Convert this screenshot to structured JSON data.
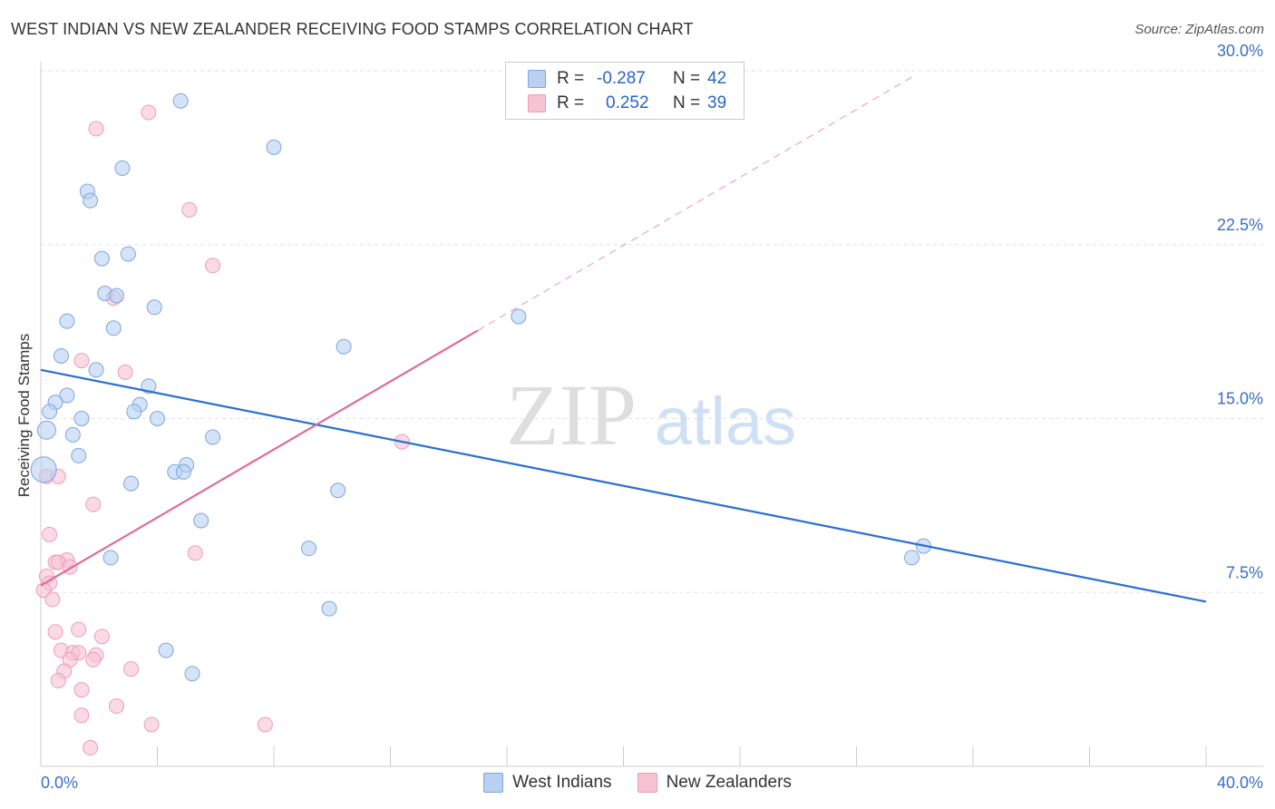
{
  "header": {
    "title": "WEST INDIAN VS NEW ZEALANDER RECEIVING FOOD STAMPS CORRELATION CHART",
    "source": "Source: ZipAtlas.com"
  },
  "colors": {
    "blue_fill": "#b8d0f1",
    "blue_stroke": "#7ea6dc",
    "blue_line": "#2a6fd0",
    "pink_fill": "#f7c3d3",
    "pink_stroke": "#ee9cb6",
    "pink_line": "#e06a95",
    "tick_text": "#3a6fc4",
    "grid": "#e2e2e2"
  },
  "legend": {
    "series1": {
      "r_label": "R =",
      "r_value": "-0.287",
      "n_label": "N =",
      "n_value": "42"
    },
    "series2": {
      "r_label": "R =",
      "r_value": "0.252",
      "n_label": "N =",
      "n_value": "39"
    }
  },
  "bottom_legend": [
    "West Indians",
    "New Zealanders"
  ],
  "watermark": {
    "zip": "ZIP",
    "atlas": "atlas"
  },
  "chart_data": {
    "type": "scatter",
    "title": "WEST INDIAN VS NEW ZEALANDER RECEIVING FOOD STAMPS CORRELATION CHART",
    "xlabel": "",
    "ylabel": "Receiving Food Stamps",
    "xlim": [
      0,
      40
    ],
    "ylim": [
      0,
      30
    ],
    "x_tick_labels": [
      "0.0%",
      "40.0%"
    ],
    "y_ticks": [
      7.5,
      15.0,
      22.5,
      30.0
    ],
    "y_tick_labels": [
      "7.5%",
      "15.0%",
      "22.5%",
      "30.0%"
    ],
    "grid": true,
    "legend_position": "top-center",
    "series": [
      {
        "name": "West Indians",
        "points": [
          [
            4.8,
            28.7
          ],
          [
            8.0,
            26.7
          ],
          [
            2.8,
            25.8
          ],
          [
            1.6,
            24.8
          ],
          [
            1.7,
            24.4
          ],
          [
            3.0,
            22.1
          ],
          [
            2.1,
            21.9
          ],
          [
            2.2,
            20.4
          ],
          [
            2.6,
            20.3
          ],
          [
            3.9,
            19.8
          ],
          [
            0.9,
            19.2
          ],
          [
            2.5,
            18.9
          ],
          [
            16.4,
            19.4
          ],
          [
            10.4,
            18.1
          ],
          [
            0.7,
            17.7
          ],
          [
            1.9,
            17.1
          ],
          [
            3.7,
            16.4
          ],
          [
            0.9,
            16.0
          ],
          [
            0.5,
            15.7
          ],
          [
            3.4,
            15.6
          ],
          [
            0.3,
            15.3
          ],
          [
            3.2,
            15.3
          ],
          [
            1.4,
            15.0
          ],
          [
            4.0,
            15.0
          ],
          [
            0.2,
            14.5
          ],
          [
            1.1,
            14.3
          ],
          [
            5.9,
            14.2
          ],
          [
            1.3,
            13.4
          ],
          [
            5.0,
            13.0
          ],
          [
            4.6,
            12.7
          ],
          [
            4.9,
            12.7
          ],
          [
            0.1,
            12.8
          ],
          [
            3.1,
            12.2
          ],
          [
            10.2,
            11.9
          ],
          [
            5.5,
            10.6
          ],
          [
            9.2,
            9.4
          ],
          [
            2.4,
            9.0
          ],
          [
            29.9,
            9.0
          ],
          [
            30.3,
            9.5
          ],
          [
            9.9,
            6.8
          ],
          [
            4.3,
            5.0
          ],
          [
            5.2,
            4.0
          ]
        ]
      },
      {
        "name": "New Zealanders",
        "points": [
          [
            3.7,
            28.2
          ],
          [
            1.9,
            27.5
          ],
          [
            5.1,
            24.0
          ],
          [
            5.9,
            21.6
          ],
          [
            2.5,
            20.2
          ],
          [
            1.4,
            17.5
          ],
          [
            2.9,
            17.0
          ],
          [
            12.4,
            14.0
          ],
          [
            0.2,
            12.5
          ],
          [
            0.6,
            12.5
          ],
          [
            1.8,
            11.3
          ],
          [
            0.3,
            10.0
          ],
          [
            5.3,
            9.2
          ],
          [
            0.9,
            8.9
          ],
          [
            0.5,
            8.8
          ],
          [
            0.6,
            8.8
          ],
          [
            1.0,
            8.6
          ],
          [
            0.2,
            8.2
          ],
          [
            0.3,
            7.9
          ],
          [
            0.1,
            7.6
          ],
          [
            0.4,
            7.2
          ],
          [
            0.5,
            5.8
          ],
          [
            1.3,
            5.9
          ],
          [
            2.1,
            5.6
          ],
          [
            0.7,
            5.0
          ],
          [
            1.1,
            4.9
          ],
          [
            1.3,
            4.9
          ],
          [
            1.9,
            4.8
          ],
          [
            1.0,
            4.6
          ],
          [
            1.8,
            4.6
          ],
          [
            3.1,
            4.2
          ],
          [
            0.8,
            4.1
          ],
          [
            0.6,
            3.7
          ],
          [
            1.4,
            3.3
          ],
          [
            2.6,
            2.6
          ],
          [
            1.4,
            2.2
          ],
          [
            3.8,
            1.8
          ],
          [
            7.7,
            1.8
          ],
          [
            1.7,
            0.8
          ]
        ]
      }
    ],
    "trend_lines": [
      {
        "series": "West Indians",
        "x": [
          0,
          40
        ],
        "y": [
          17.1,
          7.1
        ],
        "style": "solid"
      },
      {
        "series": "New Zealanders",
        "x": [
          0,
          15
        ],
        "y": [
          7.8,
          18.8
        ],
        "style": "solid"
      },
      {
        "series": "New Zealanders",
        "x": [
          15,
          30
        ],
        "y": [
          18.8,
          29.8
        ],
        "style": "dashed"
      }
    ]
  }
}
